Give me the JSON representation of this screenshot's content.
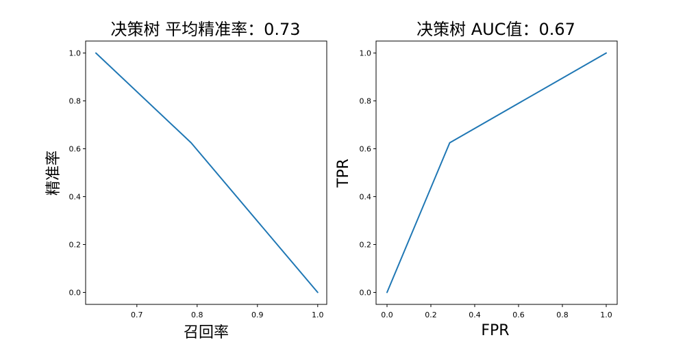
{
  "chart_data": [
    {
      "type": "line",
      "title": "决策树 平均精准率：0.73",
      "xlabel": "召回率",
      "ylabel": "精准率",
      "xlim": [
        0.615,
        1.015
      ],
      "ylim": [
        -0.05,
        1.05
      ],
      "xticks": [
        0.7,
        0.8,
        0.9,
        1.0
      ],
      "xtick_labels": [
        "0.7",
        "0.8",
        "0.9",
        "1.0"
      ],
      "yticks": [
        0.0,
        0.2,
        0.4,
        0.6,
        0.8,
        1.0
      ],
      "ytick_labels": [
        "0.0",
        "0.2",
        "0.4",
        "0.6",
        "0.8",
        "1.0"
      ],
      "grid": false,
      "series": [
        {
          "x": [
            0.632,
            0.79,
            1.0
          ],
          "y": [
            1.0,
            0.625,
            0.0
          ],
          "color": "#1f77b4"
        }
      ]
    },
    {
      "type": "line",
      "title": "决策树 AUC值：0.67",
      "xlabel": "FPR",
      "ylabel": "TPR",
      "xlim": [
        -0.05,
        1.05
      ],
      "ylim": [
        -0.05,
        1.05
      ],
      "xticks": [
        0.0,
        0.2,
        0.4,
        0.6,
        0.8,
        1.0
      ],
      "xtick_labels": [
        "0.0",
        "0.2",
        "0.4",
        "0.6",
        "0.8",
        "1.0"
      ],
      "yticks": [
        0.0,
        0.2,
        0.4,
        0.6,
        0.8,
        1.0
      ],
      "ytick_labels": [
        "0.0",
        "0.2",
        "0.4",
        "0.6",
        "0.8",
        "1.0"
      ],
      "grid": false,
      "series": [
        {
          "x": [
            0.0,
            0.286,
            1.0
          ],
          "y": [
            0.0,
            0.625,
            1.0
          ],
          "color": "#1f77b4"
        }
      ]
    }
  ]
}
